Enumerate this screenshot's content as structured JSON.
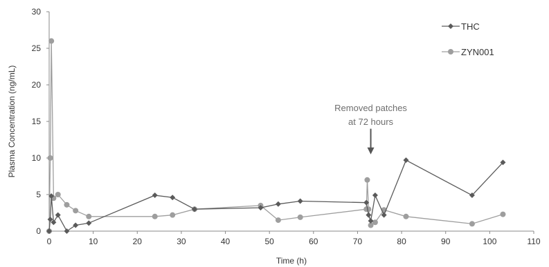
{
  "chart_data": {
    "type": "line",
    "title": "",
    "xlabel": "Time (h)",
    "ylabel": "Plasma Concentration (ng/mL)",
    "xlim": [
      0,
      110
    ],
    "ylim": [
      0,
      30
    ],
    "xticks": [
      0,
      10,
      20,
      30,
      40,
      50,
      60,
      70,
      80,
      90,
      100,
      110
    ],
    "yticks": [
      0,
      5,
      10,
      15,
      20,
      25,
      30
    ],
    "grid": false,
    "legend_position": "top-right",
    "series": [
      {
        "name": "THC",
        "color": "#5a5a5a",
        "marker": "diamond",
        "x": [
          0,
          0.25,
          0.5,
          1,
          2,
          4,
          6,
          9,
          24,
          28,
          33,
          48,
          52,
          57,
          72,
          72.5,
          73,
          74,
          76,
          81,
          96,
          103
        ],
        "y": [
          0,
          1.6,
          4.8,
          1.2,
          2.2,
          0,
          0.8,
          1.1,
          4.9,
          4.6,
          3.0,
          3.2,
          3.7,
          4.1,
          3.9,
          2.2,
          1.4,
          4.9,
          2.2,
          9.7,
          4.9,
          9.4
        ]
      },
      {
        "name": "ZYN001",
        "color": "#9e9e9e",
        "marker": "circle",
        "x": [
          0,
          0.25,
          0.5,
          1,
          2,
          4,
          6,
          9,
          24,
          28,
          33,
          48,
          52,
          57,
          72,
          72.2,
          72.5,
          73,
          74,
          76,
          81,
          96,
          103
        ],
        "y": [
          0,
          10.0,
          26.0,
          4.5,
          5.0,
          3.6,
          2.8,
          2.0,
          2.0,
          2.2,
          3.0,
          3.5,
          1.5,
          1.9,
          3.0,
          7.0,
          3.0,
          0.8,
          1.2,
          2.9,
          2.0,
          1.0,
          2.3
        ]
      }
    ],
    "annotation": {
      "lines": [
        "Removed patches",
        "at 72 hours"
      ],
      "arrow_x": 73,
      "arrow_from_y": 14,
      "arrow_to_y": 10.5
    }
  }
}
